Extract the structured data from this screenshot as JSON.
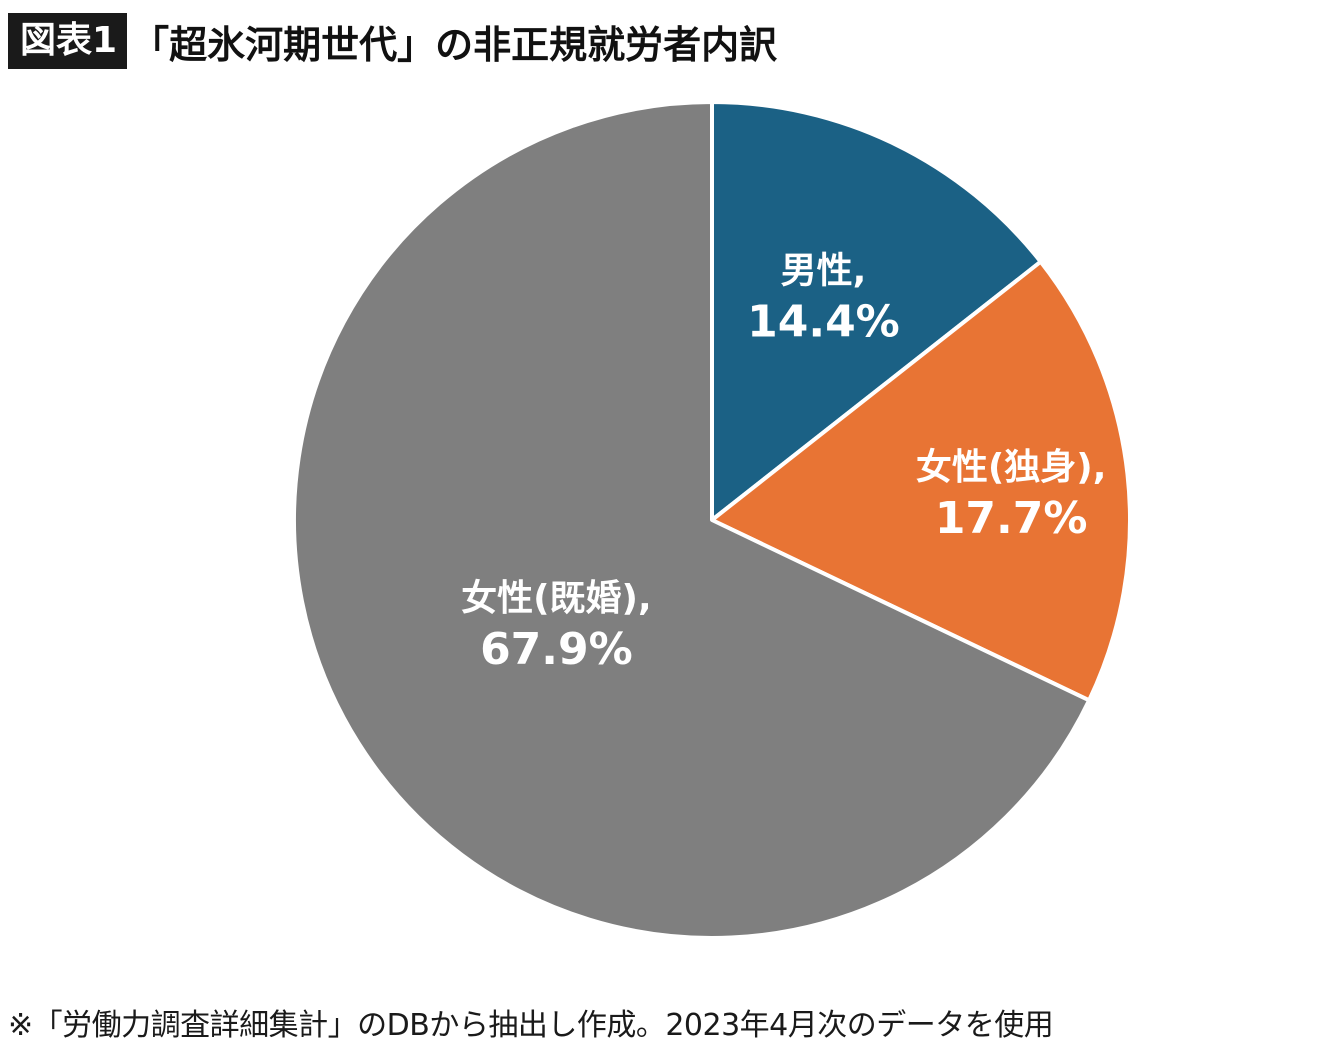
{
  "header": {
    "badge": "図表1",
    "title": "「超氷河期世代」の非正規就労者内訳"
  },
  "chart_data": {
    "type": "pie",
    "title": "「超氷河期世代」の非正規就労者内訳",
    "start": "12 o'clock",
    "direction": "clockwise",
    "slices": [
      {
        "name": "男性,",
        "value": 14.4,
        "label": "14.4%",
        "color": "#1b6185"
      },
      {
        "name": "女性(独身),",
        "value": 17.7,
        "label": "17.7%",
        "color": "#e87434"
      },
      {
        "name": "女性(既婚),",
        "value": 67.9,
        "label": "67.9%",
        "color": "#7f7f7f"
      }
    ]
  },
  "footnote": "※「労働力調査詳細集計」のDBから抽出し作成。2023年4月次のデータを使用"
}
